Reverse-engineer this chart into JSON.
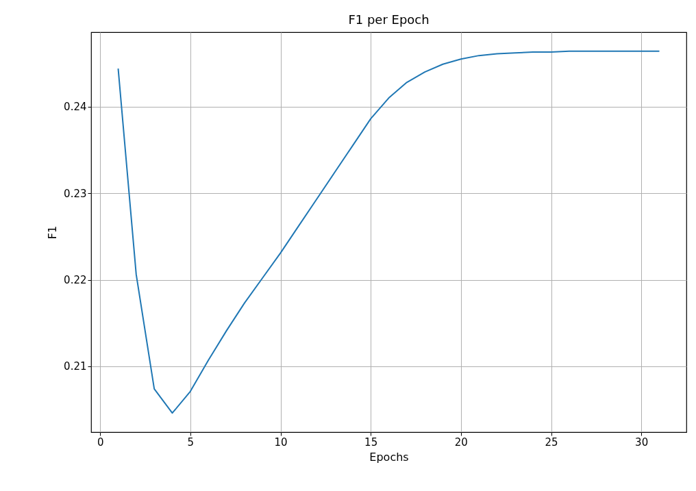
{
  "chart_data": {
    "type": "line",
    "title": "F1 per Epoch",
    "xlabel": "Epochs",
    "ylabel": "F1",
    "x": [
      1,
      2,
      3,
      4,
      5,
      6,
      7,
      8,
      9,
      10,
      11,
      12,
      13,
      14,
      15,
      16,
      17,
      18,
      19,
      20,
      21,
      22,
      23,
      24,
      25,
      26,
      27,
      28,
      29,
      30,
      31
    ],
    "series": [
      {
        "color": "#1f77b4",
        "values": [
          0.2444,
          0.2206,
          0.2074,
          0.2046,
          0.2071,
          0.2107,
          0.2141,
          0.2173,
          0.2202,
          0.2231,
          0.2262,
          0.2293,
          0.2324,
          0.2355,
          0.2386,
          0.241,
          0.2428,
          0.244,
          0.2449,
          0.2455,
          0.2459,
          0.2461,
          0.2462,
          0.2463,
          0.2463,
          0.2464,
          0.2464,
          0.2464,
          0.2464,
          0.2464,
          0.2464
        ]
      }
    ],
    "xlim": [
      -0.5,
      32.5
    ],
    "ylim": [
      0.2024,
      0.2486
    ],
    "xticks": [
      0,
      5,
      10,
      15,
      20,
      25,
      30
    ],
    "yticks": [
      0.21,
      0.22,
      0.23,
      0.24
    ],
    "grid": true,
    "marker": "none",
    "line_style": "solid"
  }
}
